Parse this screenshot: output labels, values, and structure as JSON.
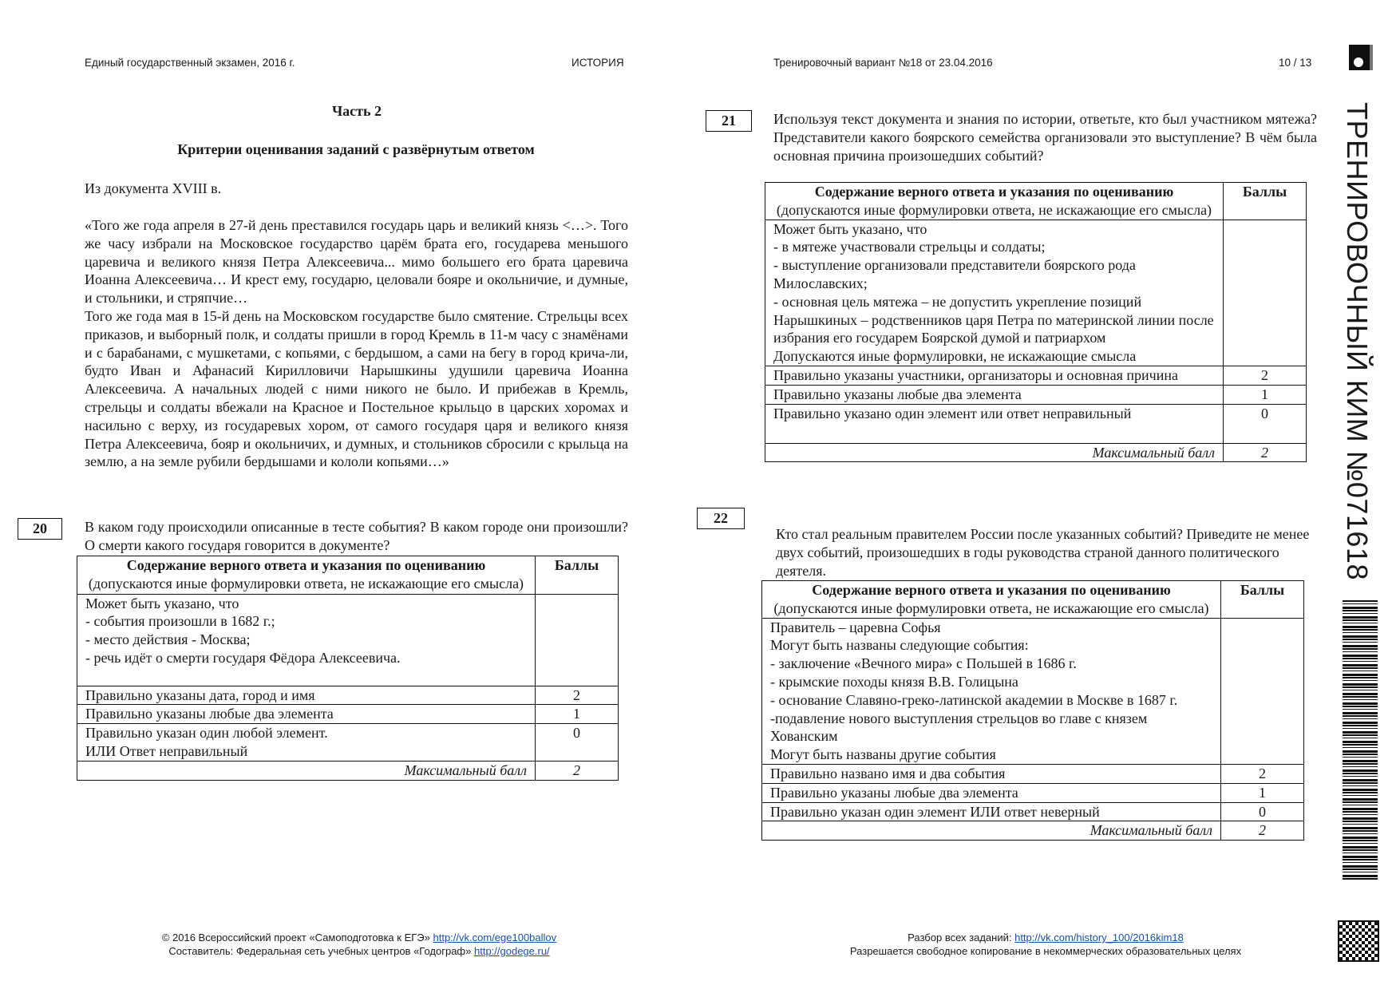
{
  "header": {
    "left": "Единый государственный экзамен, 2016 г.",
    "subject": "ИСТОРИЯ",
    "variant": "Тренировочный вариант №18 от 23.04.2016",
    "page": "10 / 13"
  },
  "left": {
    "part_title": "Часть 2",
    "criteria_title": "Критерии оценивания заданий с развёрнутым ответом",
    "source": "Из документа XVIII в.",
    "quote_p1": "«Того же года апреля в 27-й день преставился государь царь и великий князь <…>. Того же часу избрали на Московское государство царём брата его, государева меньшого царевича и великого князя Петра Алексеевича... мимо большего его брата царевича Иоанна Алексеевича… И крест ему, государю, целовали бояре и окольничие, и думные, и стольники, и стряпчие…",
    "quote_p2": "Того же года мая в 15-й день на Московском государстве было смятение. Стрельцы всех приказов, и выборный полк, и солдаты пришли в город Кремль в 11-м часу с знамёнами и с барабанами, с мушкетами, с копьями, с бердышом, а сами на бегу в город крича-ли, будто Иван и Афанасий Кирилловичи Нарышкины удушили царевича Иоанна Алексеевича. А начальных людей с ними никого не было. И прибежав в Кремль, стрельцы и солдаты вбежали на Красное и Постельное крыльцо в царских хоромах и насильно с верху, из государевых хором, от самого государя царя и великого князя Петра Алексеевича, бояр и окольничих, и думных, и стольников сбросили с крыльца на землю, а на земле рубили бердышами и кололи копьями…»"
  },
  "table_header": {
    "title": "Содержание верного ответа и указания по оцениванию",
    "note": "(допускаются иные формулировки ответа, не искажающие его смысла)",
    "points": "Баллы",
    "max_label": "Максимальный балл"
  },
  "task20": {
    "number": "20",
    "question": "В каком году происходили описанные в тесте события? В каком городе они произошли? О смерти какого государя говорится в документе?",
    "answer_lines": [
      "Может быть указано, что",
      "- события произошли в 1682 г.;",
      "- место действия - Москва;",
      "- речь идёт о смерти государя Фёдора Алексеевича."
    ],
    "rows": [
      {
        "text": "Правильно  указаны  дата, город и имя",
        "points": "2"
      },
      {
        "text": "Правильно указаны любые два элемента",
        "points": "1"
      },
      {
        "text": "Правильно указан один любой элемент.\nИЛИ Ответ неправильный",
        "points": "0"
      }
    ],
    "max": "2"
  },
  "task21": {
    "number": "21",
    "question": "Используя текст документа и знания по истории, ответьте, кто был участником мятежа? Представители какого боярского семейства организовали это выступление? В чём была основная причина произошедших событий?",
    "answer_lines": [
      "Может быть указано, что",
      "- в мятеже участвовали стрельцы и солдаты;",
      "- выступление организовали представители боярского рода Милославских;",
      "- основная цель мятежа – не допустить укрепление позиций Нарышкиных – родственников царя Петра по материнской линии после избрания его государем Боярской думой и патриархом",
      " Допускаются иные формулировки, не искажающие смысла"
    ],
    "rows": [
      {
        "text": "Правильно указаны участники, организаторы и основная причина",
        "points": "2"
      },
      {
        "text": "Правильно указаны любые два элемента",
        "points": "1"
      },
      {
        "text": "Правильно указано один элемент или ответ неправильный",
        "points": "0"
      }
    ],
    "max": "2"
  },
  "task22": {
    "number": "22",
    "question": "Кто стал реальным правителем России после указанных событий? Приведите не менее двух событий, произошедших в годы руководства страной данного политического деятеля.",
    "answer_lines": [
      "Правитель – царевна Софья",
      "Могут быть названы следующие события:",
      "- заключение «Вечного мира» с Польшей в 1686 г.",
      "- крымские походы князя В.В. Голицына",
      "- основание Славяно-греко-латинской академии в Москве в 1687 г.",
      "-подавление нового выступления стрельцов во главе с князем Хованским",
      "Могут быть названы другие события"
    ],
    "rows": [
      {
        "text": "Правильно названо имя и два события",
        "points": "2"
      },
      {
        "text": "Правильно указаны любые два элемента",
        "points": "1"
      },
      {
        "text": "Правильно указан один элемент ИЛИ ответ неверный",
        "points": "0"
      }
    ],
    "max": "2"
  },
  "side": {
    "vertical_title": "ТРЕНИРОВОЧНЫЙ КИМ №071618"
  },
  "footer": {
    "left_line1": "© 2016 Всероссийский проект «Самоподготовка к ЕГЭ»",
    "left_link1": "http://vk.com/ege100ballov",
    "left_line2": "Составитель: Федеральная сеть учебных центров «Годограф»",
    "left_link2": "http://godege.ru/",
    "right_line1": "Разбор всех заданий:",
    "right_link1": "http://vk.com/history_100/2016kim18",
    "right_line2": "Разрешается свободное копирование в некоммерческих образовательных целях"
  }
}
